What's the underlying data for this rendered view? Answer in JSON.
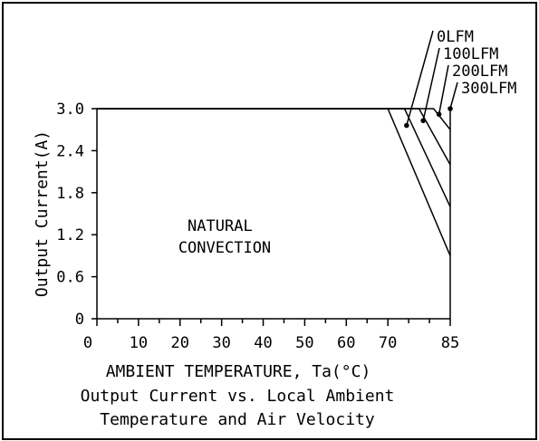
{
  "chart_data": {
    "type": "line",
    "title": "Output Current vs. Local Ambient Temperature and Air Velocity",
    "title_lines": [
      "Output Current vs. Local Ambient",
      "Temperature and Air Velocity"
    ],
    "xlabel": "AMBIENT TEMPERATURE, Ta(°C)",
    "ylabel": "Output Current(A)",
    "xlim": [
      0,
      85
    ],
    "ylim": [
      0,
      3.0
    ],
    "x_ticks": [
      0,
      10,
      20,
      30,
      40,
      50,
      60,
      70,
      85
    ],
    "x_minor_ticks": [
      5,
      15,
      25,
      35,
      45,
      55,
      65,
      75,
      80
    ],
    "y_ticks": [
      0,
      0.6,
      1.2,
      1.8,
      2.4,
      3.0
    ],
    "y_tick_labels": [
      "0",
      "0.6",
      "1.2",
      "1.8",
      "2.4",
      "3.0"
    ],
    "grid": false,
    "annotation_lines": [
      "NATURAL",
      "CONVECTION"
    ],
    "series": [
      {
        "name": "0LFM",
        "x": [
          0,
          70,
          85
        ],
        "y": [
          3.0,
          3.0,
          0.9
        ]
      },
      {
        "name": "100LFM",
        "x": [
          0,
          74,
          85
        ],
        "y": [
          3.0,
          3.0,
          1.6
        ]
      },
      {
        "name": "200LFM",
        "x": [
          0,
          77.5,
          85
        ],
        "y": [
          3.0,
          3.0,
          2.2
        ]
      },
      {
        "name": "300LFM",
        "x": [
          0,
          81,
          85
        ],
        "y": [
          3.0,
          3.0,
          2.7
        ]
      }
    ],
    "leader_targets": [
      {
        "series": "0LFM",
        "x": 74.5,
        "y": 2.76
      },
      {
        "series": "100LFM",
        "x": 78.5,
        "y": 2.83
      },
      {
        "series": "200LFM",
        "x": 82.3,
        "y": 2.92
      },
      {
        "series": "300LFM",
        "x": 85,
        "y": 3.0
      }
    ]
  }
}
